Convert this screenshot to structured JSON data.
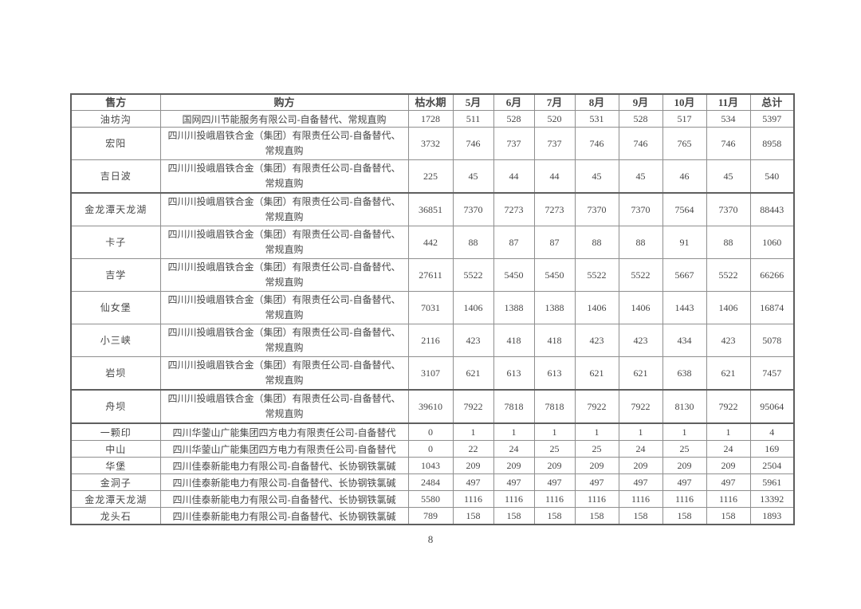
{
  "page": {
    "number": "8"
  },
  "colors": {
    "text": "#474747",
    "border": "#8f8f8f",
    "border_dark": "#5f5f5f",
    "page_bg": "#ffffff"
  },
  "table": {
    "columns": [
      "售方",
      "购方",
      "枯水期",
      "5月",
      "6月",
      "7月",
      "8月",
      "9月",
      "10月",
      "11月",
      "总计"
    ],
    "rows": [
      {
        "seller": "油坊沟",
        "buyer": "国网四川节能服务有限公司-自备替代、常规直购",
        "values": [
          "1728",
          "511",
          "528",
          "520",
          "531",
          "528",
          "517",
          "534",
          "5397"
        ]
      },
      {
        "seller": "宏阳",
        "buyer": "四川川投峨眉铁合金（集团）有限责任公司-自备替代、常规直购",
        "values": [
          "3732",
          "746",
          "737",
          "737",
          "746",
          "746",
          "765",
          "746",
          "8958"
        ]
      },
      {
        "seller": "吉日波",
        "buyer": "四川川投峨眉铁合金（集团）有限责任公司-自备替代、常规直购",
        "values": [
          "225",
          "45",
          "44",
          "44",
          "45",
          "45",
          "46",
          "45",
          "540"
        ]
      },
      {
        "seller": "金龙潭天龙湖",
        "buyer": "四川川投峨眉铁合金（集团）有限责任公司-自备替代、常规直购",
        "values": [
          "36851",
          "7370",
          "7273",
          "7273",
          "7370",
          "7370",
          "7564",
          "7370",
          "88443"
        ]
      },
      {
        "seller": "卡子",
        "buyer": "四川川投峨眉铁合金（集团）有限责任公司-自备替代、常规直购",
        "values": [
          "442",
          "88",
          "87",
          "87",
          "88",
          "88",
          "91",
          "88",
          "1060"
        ]
      },
      {
        "seller": "吉学",
        "buyer": "四川川投峨眉铁合金（集团）有限责任公司-自备替代、常规直购",
        "values": [
          "27611",
          "5522",
          "5450",
          "5450",
          "5522",
          "5522",
          "5667",
          "5522",
          "66266"
        ]
      },
      {
        "seller": "仙女堡",
        "buyer": "四川川投峨眉铁合金（集团）有限责任公司-自备替代、常规直购",
        "values": [
          "7031",
          "1406",
          "1388",
          "1388",
          "1406",
          "1406",
          "1443",
          "1406",
          "16874"
        ]
      },
      {
        "seller": "小三峡",
        "buyer": "四川川投峨眉铁合金（集团）有限责任公司-自备替代、常规直购",
        "values": [
          "2116",
          "423",
          "418",
          "418",
          "423",
          "423",
          "434",
          "423",
          "5078"
        ]
      },
      {
        "seller": "岩坝",
        "buyer": "四川川投峨眉铁合金（集团）有限责任公司-自备替代、常规直购",
        "values": [
          "3107",
          "621",
          "613",
          "613",
          "621",
          "621",
          "638",
          "621",
          "7457"
        ]
      },
      {
        "seller": "舟坝",
        "buyer": "四川川投峨眉铁合金（集团）有限责任公司-自备替代、常规直购",
        "values": [
          "39610",
          "7922",
          "7818",
          "7818",
          "7922",
          "7922",
          "8130",
          "7922",
          "95064"
        ]
      },
      {
        "seller": "一颗印",
        "buyer": "四川华蓥山广能集团四方电力有限责任公司-自备替代",
        "values": [
          "0",
          "1",
          "1",
          "1",
          "1",
          "1",
          "1",
          "1",
          "4"
        ]
      },
      {
        "seller": "中山",
        "buyer": "四川华蓥山广能集团四方电力有限责任公司-自备替代",
        "values": [
          "0",
          "22",
          "24",
          "25",
          "25",
          "24",
          "25",
          "24",
          "169"
        ]
      },
      {
        "seller": "华堡",
        "buyer": "四川佳泰新能电力有限公司-自备替代、长协钢铁氯碱",
        "values": [
          "1043",
          "209",
          "209",
          "209",
          "209",
          "209",
          "209",
          "209",
          "2504"
        ]
      },
      {
        "seller": "金洞子",
        "buyer": "四川佳泰新能电力有限公司-自备替代、长协钢铁氯碱",
        "values": [
          "2484",
          "497",
          "497",
          "497",
          "497",
          "497",
          "497",
          "497",
          "5961"
        ]
      },
      {
        "seller": "金龙潭天龙湖",
        "buyer": "四川佳泰新能电力有限公司-自备替代、长协钢铁氯碱",
        "values": [
          "5580",
          "1116",
          "1116",
          "1116",
          "1116",
          "1116",
          "1116",
          "1116",
          "13392"
        ]
      },
      {
        "seller": "龙头石",
        "buyer": "四川佳泰新能电力有限公司-自备替代、长协钢铁氯碱",
        "values": [
          "789",
          "158",
          "158",
          "158",
          "158",
          "158",
          "158",
          "158",
          "1893"
        ]
      }
    ]
  }
}
